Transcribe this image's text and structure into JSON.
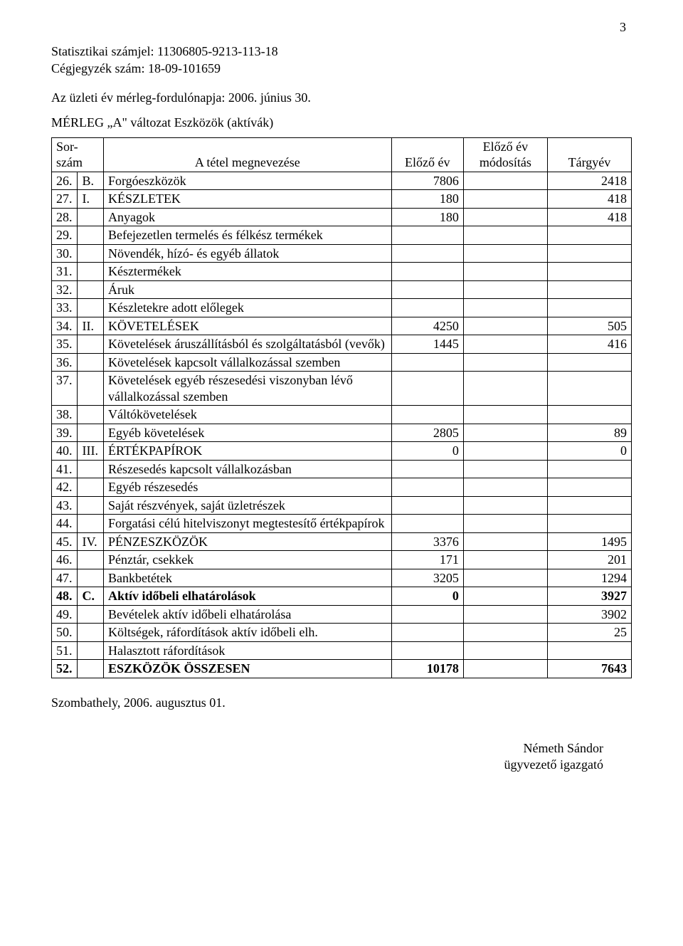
{
  "page_number": "3",
  "header": {
    "stat_line": "Statisztikai számjel: 11306805-9213-113-18",
    "reg_line": "Cégjegyzék szám:  18-09-101659",
    "subtitle": "Az üzleti év mérleg-fordulónapja: 2006. június 30.",
    "title": "MÉRLEG „A\" változat Eszközök (aktívák)"
  },
  "table": {
    "columns": {
      "c1a": "Sor-",
      "c1b": "szám",
      "c2": "A tétel megnevezése",
      "c3": "Előző év",
      "c4a": "Előző év",
      "c4b": "módosítás",
      "c5": "Tárgyév"
    },
    "rows": [
      {
        "n": "26.",
        "mark": "B.",
        "name": "Forgóeszközök",
        "prev": "7806",
        "mod": "",
        "cur": "2418",
        "bold": false
      },
      {
        "n": "27.",
        "mark": "I.",
        "name": "KÉSZLETEK",
        "prev": "180",
        "mod": "",
        "cur": "418",
        "bold": false
      },
      {
        "n": "28.",
        "mark": "",
        "name": "Anyagok",
        "prev": "180",
        "mod": "",
        "cur": "418",
        "bold": false
      },
      {
        "n": "29.",
        "mark": "",
        "name": "Befejezetlen termelés és félkész termékek",
        "prev": "",
        "mod": "",
        "cur": "",
        "bold": false
      },
      {
        "n": "30.",
        "mark": "",
        "name": "Növendék, hízó- és egyéb állatok",
        "prev": "",
        "mod": "",
        "cur": "",
        "bold": false
      },
      {
        "n": "31.",
        "mark": "",
        "name": "Késztermékek",
        "prev": "",
        "mod": "",
        "cur": "",
        "bold": false
      },
      {
        "n": "32.",
        "mark": "",
        "name": "Áruk",
        "prev": "",
        "mod": "",
        "cur": "",
        "bold": false
      },
      {
        "n": "33.",
        "mark": "",
        "name": "Készletekre adott előlegek",
        "prev": "",
        "mod": "",
        "cur": "",
        "bold": false
      },
      {
        "n": "34.",
        "mark": "II.",
        "name": "KÖVETELÉSEK",
        "prev": "4250",
        "mod": "",
        "cur": "505",
        "bold": false
      },
      {
        "n": "35.",
        "mark": "",
        "name": "Követelések áruszállításból és szolgáltatásból (vevők)",
        "prev": "1445",
        "mod": "",
        "cur": "416",
        "bold": false
      },
      {
        "n": "36.",
        "mark": "",
        "name": "Követelések kapcsolt vállalkozással szemben",
        "prev": "",
        "mod": "",
        "cur": "",
        "bold": false
      },
      {
        "n": "37.",
        "mark": "",
        "name": "Követelések egyéb részesedési viszonyban lévő vállalkozással szemben",
        "prev": "",
        "mod": "",
        "cur": "",
        "bold": false
      },
      {
        "n": "38.",
        "mark": "",
        "name": "Váltókövetelések",
        "prev": "",
        "mod": "",
        "cur": "",
        "bold": false
      },
      {
        "n": "39.",
        "mark": "",
        "name": "Egyéb követelések",
        "prev": "2805",
        "mod": "",
        "cur": "89",
        "bold": false
      },
      {
        "n": "40.",
        "mark": "III.",
        "name": "ÉRTÉKPAPÍROK",
        "prev": "0",
        "mod": "",
        "cur": "0",
        "bold": false
      },
      {
        "n": "41.",
        "mark": "",
        "name": "Részesedés kapcsolt vállalkozásban",
        "prev": "",
        "mod": "",
        "cur": "",
        "bold": false
      },
      {
        "n": "42.",
        "mark": "",
        "name": "Egyéb részesedés",
        "prev": "",
        "mod": "",
        "cur": "",
        "bold": false
      },
      {
        "n": "43.",
        "mark": "",
        "name": "Saját részvények, saját üzletrészek",
        "prev": "",
        "mod": "",
        "cur": "",
        "bold": false
      },
      {
        "n": "44.",
        "mark": "",
        "name": "Forgatási célú hitelviszonyt megtestesítő értékpapírok",
        "prev": "",
        "mod": "",
        "cur": "",
        "bold": false
      },
      {
        "n": "45.",
        "mark": "IV.",
        "name": "PÉNZESZKÖZÖK",
        "prev": "3376",
        "mod": "",
        "cur": "1495",
        "bold": false
      },
      {
        "n": "46.",
        "mark": "",
        "name": "Pénztár, csekkek",
        "prev": "171",
        "mod": "",
        "cur": "201",
        "bold": false
      },
      {
        "n": "47.",
        "mark": "",
        "name": "Bankbetétek",
        "prev": "3205",
        "mod": "",
        "cur": "1294",
        "bold": false
      },
      {
        "n": "48.",
        "mark": "C.",
        "name": "Aktív időbeli elhatárolások",
        "prev": "0",
        "mod": "",
        "cur": "3927",
        "bold": true
      },
      {
        "n": "49.",
        "mark": "",
        "name": "Bevételek aktív időbeli elhatárolása",
        "prev": "",
        "mod": "",
        "cur": "3902",
        "bold": false
      },
      {
        "n": "50.",
        "mark": "",
        "name": "Költségek, ráfordítások aktív időbeli elh.",
        "prev": "",
        "mod": "",
        "cur": "25",
        "bold": false
      },
      {
        "n": "51.",
        "mark": "",
        "name": "Halasztott ráfordítások",
        "prev": "",
        "mod": "",
        "cur": "",
        "bold": false
      },
      {
        "n": "52.",
        "mark": "",
        "name": "ESZKÖZÖK ÖSSZESEN",
        "prev": "10178",
        "mod": "",
        "cur": "7643",
        "bold": true
      }
    ]
  },
  "footer": {
    "place_date": "Szombathely, 2006. augusztus 01.",
    "signer_name": "Németh Sándor",
    "signer_title": "ügyvezető igazgató"
  }
}
